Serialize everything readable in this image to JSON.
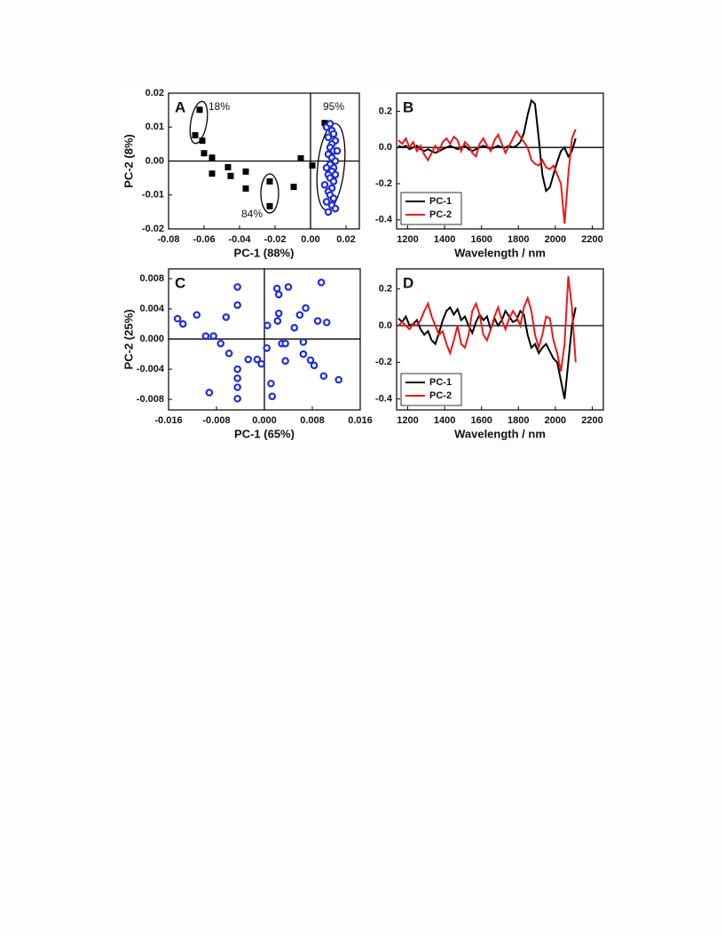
{
  "chart_data": [
    {
      "type": "scatter",
      "panel_label": "A",
      "xlabel": "PC-1 (88%)",
      "ylabel": "PC-2 (8%)",
      "xlim": [
        -0.08,
        0.0275
      ],
      "ylim": [
        -0.02,
        0.02
      ],
      "xticks": [
        -0.08,
        -0.06,
        -0.04,
        -0.02,
        {
          "value": 0,
          "label": "0.00"
        },
        0.02
      ],
      "yticks": [
        -0.02,
        -0.01,
        {
          "value": 0,
          "label": "0.00"
        },
        0.01,
        0.02
      ],
      "annotations": [
        "18%",
        "84%",
        "95%"
      ],
      "series": [
        {
          "color": "#000000",
          "marker": "square",
          "x": [
            -0.0625,
            -0.065,
            -0.061,
            -0.06,
            -0.0555,
            -0.0555,
            -0.0465,
            -0.045,
            -0.0365,
            -0.0365,
            -0.023,
            -0.023,
            -0.0095,
            -0.0055,
            0.001,
            0.008
          ],
          "y": [
            0.0151,
            0.0076,
            0.006,
            0.0023,
            0.001,
            -0.0037,
            -0.0018,
            -0.0044,
            -0.0031,
            -0.0081,
            -0.006,
            -0.0133,
            -0.0076,
            0.0008,
            -0.0013,
            0.0112
          ]
        },
        {
          "color": "#1f2fd6",
          "marker": "circle",
          "x": [
            0.009,
            0.011,
            0.012,
            0.013,
            0.01,
            0.014,
            0.012,
            0.011,
            0.013,
            0.015,
            0.01,
            0.012,
            0.014,
            0.011,
            0.009,
            0.013,
            0.012,
            0.01,
            0.014,
            0.011,
            0.013,
            0.008,
            0.012,
            0.01,
            0.011,
            0.013,
            0.009,
            0.012,
            0.014,
            0.01
          ],
          "y": [
            0.01,
            0.011,
            0.009,
            0.008,
            0.007,
            0.006,
            0.005,
            0.004,
            0.003,
            0.003,
            0.002,
            0.001,
            0,
            -0.001,
            -0.002,
            -0.002,
            -0.003,
            -0.004,
            -0.004,
            -0.005,
            -0.006,
            -0.007,
            -0.008,
            -0.009,
            -0.01,
            -0.011,
            -0.012,
            -0.013,
            -0.014,
            -0.015
          ]
        }
      ]
    },
    {
      "type": "line",
      "panel_label": "B",
      "xlabel": "Wavelength / nm",
      "legend": "lower left",
      "xlim": [
        1140,
        2260
      ],
      "ylim": [
        -0.45,
        0.3
      ],
      "xticks": [
        1200,
        1400,
        1600,
        1800,
        2000,
        2200
      ],
      "yticks": [
        -0.4,
        -0.2,
        {
          "value": 0,
          "label": "0.0"
        },
        0.2
      ],
      "x": [
        1150,
        1170,
        1190,
        1210,
        1230,
        1250,
        1270,
        1290,
        1310,
        1330,
        1350,
        1370,
        1390,
        1410,
        1430,
        1450,
        1470,
        1490,
        1510,
        1530,
        1550,
        1570,
        1590,
        1610,
        1630,
        1650,
        1670,
        1690,
        1710,
        1730,
        1750,
        1770,
        1790,
        1810,
        1830,
        1850,
        1870,
        1890,
        1910,
        1930,
        1950,
        1970,
        1990,
        2010,
        2030,
        2050,
        2070,
        2090,
        2110
      ],
      "series": [
        {
          "name": "PC-1",
          "color": "#000000",
          "values": [
            0.01,
            0,
            0.01,
            -0.01,
            0,
            0.01,
            -0.01,
            -0.02,
            -0.01,
            -0.02,
            -0.03,
            -0.02,
            -0.01,
            0,
            0.01,
            0,
            -0.01,
            0,
            0.01,
            -0.01,
            -0.02,
            -0.01,
            0,
            0.01,
            0,
            -0.01,
            0,
            0.01,
            0,
            0,
            0.01,
            0,
            0.01,
            0.03,
            0.08,
            0.18,
            0.26,
            0.24,
            0.05,
            -0.15,
            -0.24,
            -0.22,
            -0.15,
            -0.08,
            -0.02,
            0,
            -0.05,
            -0.02,
            0.05
          ]
        },
        {
          "name": "PC-2",
          "color": "#e8191b",
          "values": [
            0.04,
            0.02,
            0.05,
            0,
            0.03,
            -0.02,
            0.01,
            -0.04,
            -0.07,
            -0.03,
            0.01,
            -0.02,
            0.03,
            0.05,
            0.02,
            0.06,
            0.04,
            -0.02,
            0.03,
            0.01,
            -0.03,
            -0.05,
            0.02,
            0.05,
            0.01,
            -0.02,
            0.04,
            0.07,
            0.02,
            -0.03,
            0.01,
            0.05,
            0.09,
            0.06,
            0.03,
            0,
            -0.07,
            -0.09,
            -0.1,
            -0.07,
            -0.11,
            -0.12,
            -0.1,
            -0.15,
            -0.2,
            -0.42,
            -0.15,
            0.05,
            0.1
          ]
        }
      ]
    },
    {
      "type": "scatter",
      "panel_label": "C",
      "xlabel": "PC-1 (65%)",
      "ylabel": "PC-2 (25%)",
      "xlim": [
        -0.016,
        0.016
      ],
      "ylim": [
        -0.0094,
        0.0093
      ],
      "xticks": [
        -0.016,
        -0.008,
        {
          "value": 0,
          "label": "0.000"
        },
        0.008,
        0.016
      ],
      "yticks": [
        -0.008,
        -0.004,
        {
          "value": 0,
          "label": "0.000"
        },
        0.004,
        0.008
      ],
      "series": [
        {
          "color": "#1f2fd6",
          "marker": "circle",
          "x": [
            -0.0145,
            -0.0136,
            -0.0113,
            -0.0098,
            -0.0085,
            -0.0073,
            -0.0092,
            -0.0059,
            -0.0064,
            -0.0045,
            -0.0045,
            -0.0045,
            -0.0045,
            -0.0045,
            -0.0045,
            -0.0027,
            -0.0012,
            -0.0005,
            0.0005,
            0.0004,
            0.0011,
            0.0013,
            0.0021,
            0.0024,
            0.0024,
            0.0022,
            0.0029,
            0.0035,
            0.004,
            0.005,
            0.0035,
            0.0059,
            0.0065,
            0.0069,
            0.0065,
            0.0077,
            0.0083,
            0.0089,
            0.0099,
            0.0095,
            0.0104,
            0.0124
          ],
          "y": [
            0.0027,
            0.002,
            0.0032,
            0.0004,
            0.0004,
            -0.0006,
            -0.0071,
            -0.0019,
            0.0029,
            0.0045,
            0.0069,
            -0.004,
            -0.0052,
            -0.0064,
            -0.0079,
            -0.0027,
            -0.0027,
            -0.0033,
            0.0018,
            -0.0012,
            -0.0059,
            -0.0076,
            0.0067,
            0.0059,
            0.0034,
            0.0024,
            -0.0006,
            -0.0006,
            0.0069,
            0.0015,
            -0.0029,
            0.0032,
            -0.0004,
            0.0041,
            -0.002,
            -0.0028,
            -0.0035,
            0.0024,
            -0.0049,
            0.0075,
            0.0022,
            -0.0054
          ]
        }
      ]
    },
    {
      "type": "line",
      "panel_label": "D",
      "xlabel": "Wavelength / nm",
      "legend": "lower left",
      "xlim": [
        1140,
        2260
      ],
      "ylim": [
        -0.46,
        0.31
      ],
      "xticks": [
        1200,
        1400,
        1600,
        1800,
        2000,
        2200
      ],
      "yticks": [
        -0.4,
        -0.2,
        {
          "value": 0,
          "label": "0.0"
        },
        0.2
      ],
      "x": [
        1150,
        1170,
        1190,
        1210,
        1230,
        1250,
        1270,
        1290,
        1310,
        1330,
        1350,
        1370,
        1390,
        1410,
        1430,
        1450,
        1470,
        1490,
        1510,
        1530,
        1550,
        1570,
        1590,
        1610,
        1630,
        1650,
        1670,
        1690,
        1710,
        1730,
        1750,
        1770,
        1790,
        1810,
        1830,
        1850,
        1870,
        1890,
        1910,
        1930,
        1950,
        1970,
        1990,
        2010,
        2030,
        2050,
        2070,
        2090,
        2110
      ],
      "series": [
        {
          "name": "PC-1",
          "color": "#000000",
          "values": [
            0.04,
            0.02,
            0.05,
            0,
            0.01,
            0.03,
            -0.02,
            -0.05,
            -0.03,
            -0.08,
            -0.1,
            -0.04,
            0.03,
            0.08,
            0.1,
            0.06,
            0.09,
            0.03,
            0.05,
            0,
            -0.04,
            0.02,
            0.06,
            0.03,
            0.05,
            -0.02,
            0.04,
            0,
            0.03,
            0.08,
            0.05,
            0.02,
            0.03,
            0.08,
            0.06,
            -0.05,
            -0.12,
            -0.1,
            -0.15,
            -0.12,
            -0.1,
            -0.14,
            -0.18,
            -0.2,
            -0.3,
            -0.4,
            -0.2,
            0,
            0.1
          ]
        },
        {
          "name": "PC-2",
          "color": "#e8191b",
          "values": [
            0,
            0.02,
            0,
            -0.02,
            0.01,
            0,
            0.03,
            0.08,
            0.12,
            0.05,
            0,
            -0.05,
            -0.03,
            -0.1,
            -0.15,
            -0.08,
            0,
            -0.1,
            -0.12,
            -0.05,
            0.08,
            0.12,
            0.06,
            -0.05,
            -0.08,
            -0.02,
            0.05,
            0.1,
            0.03,
            -0.02,
            0.04,
            0.08,
            0.05,
            0,
            0.1,
            0.15,
            0.08,
            -0.05,
            -0.12,
            -0.05,
            0.05,
            0.04,
            -0.08,
            -0.15,
            -0.25,
            -0.1,
            0.27,
            0.1,
            -0.2
          ]
        }
      ]
    }
  ]
}
